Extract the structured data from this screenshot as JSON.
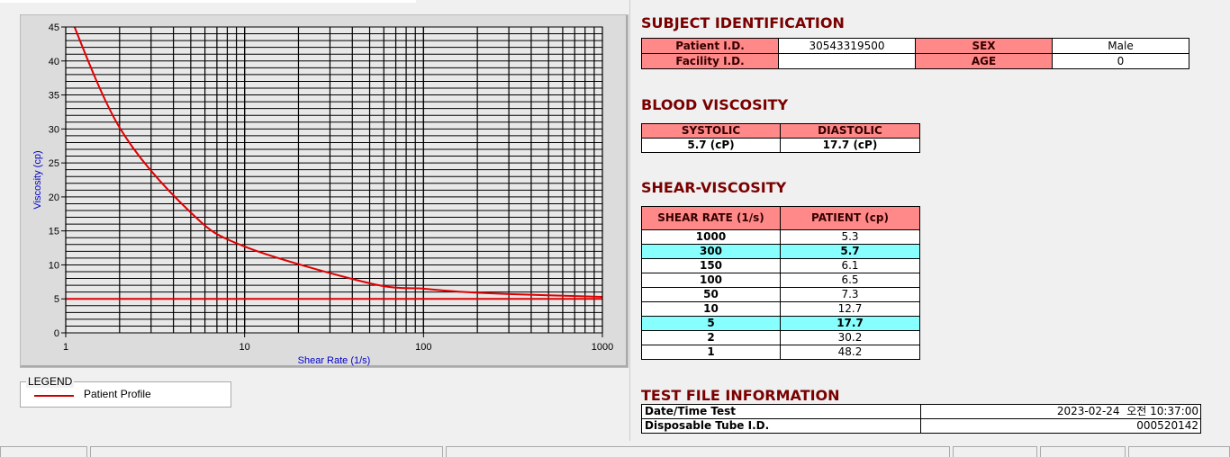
{
  "chart_data": {
    "type": "line",
    "xscale": "log",
    "xlabel": "Shear Rate (1/s)",
    "ylabel": "Viscosity (cp)",
    "xlim": [
      1,
      1000
    ],
    "ylim": [
      0,
      45
    ],
    "xticks": [
      "1",
      "10",
      "100",
      "1000"
    ],
    "yticks": [
      "0",
      "5",
      "10",
      "15",
      "20",
      "25",
      "30",
      "35",
      "40",
      "45"
    ],
    "grid": true,
    "series": [
      {
        "name": "Patient Profile",
        "color": "#e00000",
        "x": [
          1,
          2,
          5,
          10,
          50,
          100,
          150,
          300,
          1000
        ],
        "y": [
          48.2,
          30.2,
          17.7,
          12.7,
          7.3,
          6.5,
          6.1,
          5.7,
          5.3
        ]
      }
    ],
    "reference_line": {
      "y": 5,
      "color": "#e00000"
    },
    "legend": {
      "title": "LEGEND",
      "entries": [
        "Patient Profile"
      ],
      "placement": "bottom-left"
    }
  },
  "subject": {
    "title": "SUBJECT IDENTIFICATION",
    "patient_id_label": "Patient I.D.",
    "patient_id": "30543319500",
    "sex_label": "SEX",
    "sex": "Male",
    "facility_label": "Facility I.D.",
    "facility": "",
    "age_label": "AGE",
    "age": "0"
  },
  "blood": {
    "title": "BLOOD VISCOSITY",
    "systolic_label": "SYSTOLIC",
    "diastolic_label": "DIASTOLIC",
    "systolic": "5.7 (cP)",
    "diastolic": "17.7 (cP)"
  },
  "shear": {
    "title": "SHEAR-VISCOSITY",
    "col1": "SHEAR RATE (1/s)",
    "col2": "PATIENT (cp)",
    "highlight_color": "#88ffff",
    "rows": [
      {
        "rate": "1000",
        "val": "5.3"
      },
      {
        "rate": "300",
        "val": "5.7",
        "hl": true
      },
      {
        "rate": "150",
        "val": "6.1"
      },
      {
        "rate": "100",
        "val": "6.5"
      },
      {
        "rate": "50",
        "val": "7.3"
      },
      {
        "rate": "10",
        "val": "12.7"
      },
      {
        "rate": "5",
        "val": "17.7",
        "hl": true
      },
      {
        "rate": "2",
        "val": "30.2"
      },
      {
        "rate": "1",
        "val": "48.2"
      }
    ]
  },
  "testfile": {
    "title": "TEST FILE INFORMATION",
    "date_label": "Date/Time Test",
    "date": "2023-02-24  오전 10:37:00",
    "tube_label": "Disposable Tube I.D.",
    "tube": "000520142"
  }
}
